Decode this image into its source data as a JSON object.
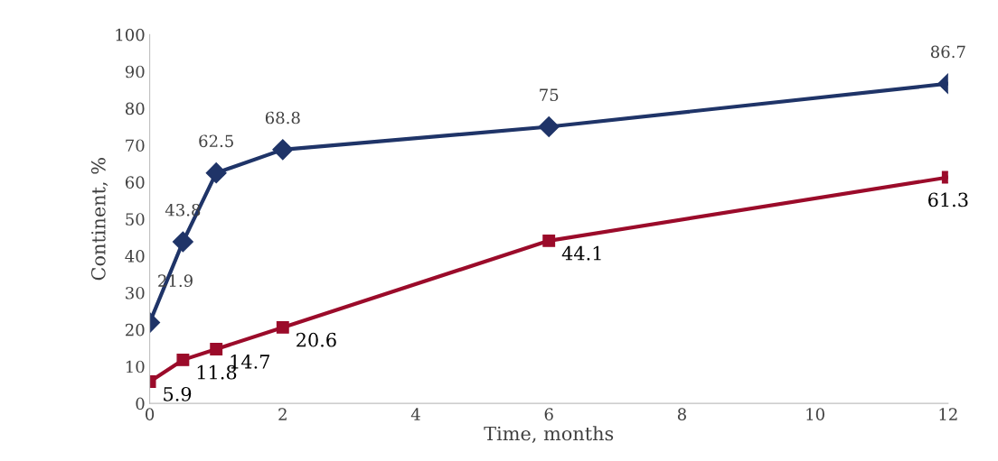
{
  "chart_data": {
    "type": "line",
    "xlabel": "Time, months",
    "ylabel": "Continent, %",
    "x": [
      0,
      0.5,
      1,
      2,
      6,
      12
    ],
    "series": [
      {
        "color": "#1f3468",
        "marker": "diamond",
        "values": [
          21.9,
          43.8,
          62.5,
          68.8,
          75,
          86.7
        ]
      },
      {
        "color": "#9b0b2a",
        "marker": "square",
        "values": [
          5.9,
          11.8,
          14.7,
          20.6,
          44.1,
          61.3
        ]
      }
    ],
    "xlim": [
      0,
      12
    ],
    "xticks": [
      0,
      2,
      4,
      6,
      8,
      10,
      12
    ],
    "ylim": [
      0,
      100
    ],
    "yticks": [
      0,
      10,
      20,
      30,
      40,
      50,
      60,
      70,
      80,
      90,
      100
    ],
    "data_labels": true,
    "grid": false,
    "legend": false,
    "line_style": "solid"
  }
}
